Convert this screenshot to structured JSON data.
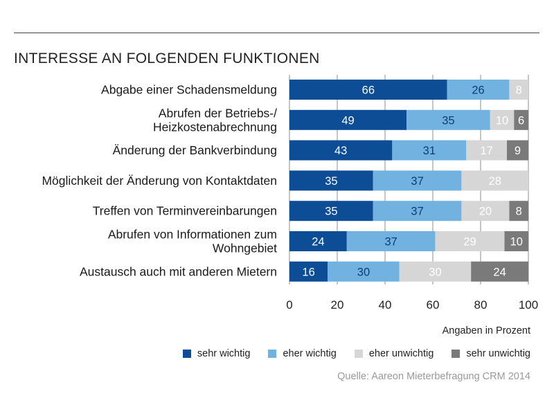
{
  "title": "INTERESSE AN FOLGENDEN FUNKTIONEN",
  "unit_label": "Angaben in Prozent",
  "source": "Quelle: Aareon Mieterbefragung CRM 2014",
  "colors": {
    "sehr_wichtig": "#0c4d96",
    "eher_wichtig": "#72b2e1",
    "eher_unwichtig": "#d6d6d6",
    "sehr_unwichtig": "#7a7a7a"
  },
  "chart_data": {
    "type": "bar",
    "orientation": "horizontal",
    "stacked": true,
    "categories": [
      [
        "Abgabe einer Schadensmeldung"
      ],
      [
        "Abrufen der Betriebs-/",
        "Heizkostenabrechnung"
      ],
      [
        "Änderung der Bankverbindung"
      ],
      [
        "Möglichkeit der Änderung von Kontaktdaten"
      ],
      [
        "Treffen von Terminvereinbarungen"
      ],
      [
        "Abrufen von Informationen zum",
        "Wohngebiet"
      ],
      [
        "Austausch auch mit anderen Mietern"
      ]
    ],
    "series": [
      {
        "name": "sehr wichtig",
        "color": "#0c4d96",
        "values": [
          66,
          49,
          43,
          35,
          35,
          24,
          16
        ]
      },
      {
        "name": "eher wichtig",
        "color": "#72b2e1",
        "values": [
          26,
          35,
          31,
          37,
          37,
          37,
          30
        ]
      },
      {
        "name": "eher unwichtig",
        "color": "#d6d6d6",
        "values": [
          8,
          10,
          17,
          28,
          20,
          29,
          30
        ]
      },
      {
        "name": "sehr unwichtig",
        "color": "#7a7a7a",
        "values": [
          0,
          6,
          9,
          0,
          8,
          10,
          24
        ]
      }
    ],
    "xlim": [
      0,
      100
    ],
    "xticks": [
      0,
      20,
      40,
      60,
      80,
      100
    ],
    "grid": true,
    "legend_position": "bottom-right"
  }
}
